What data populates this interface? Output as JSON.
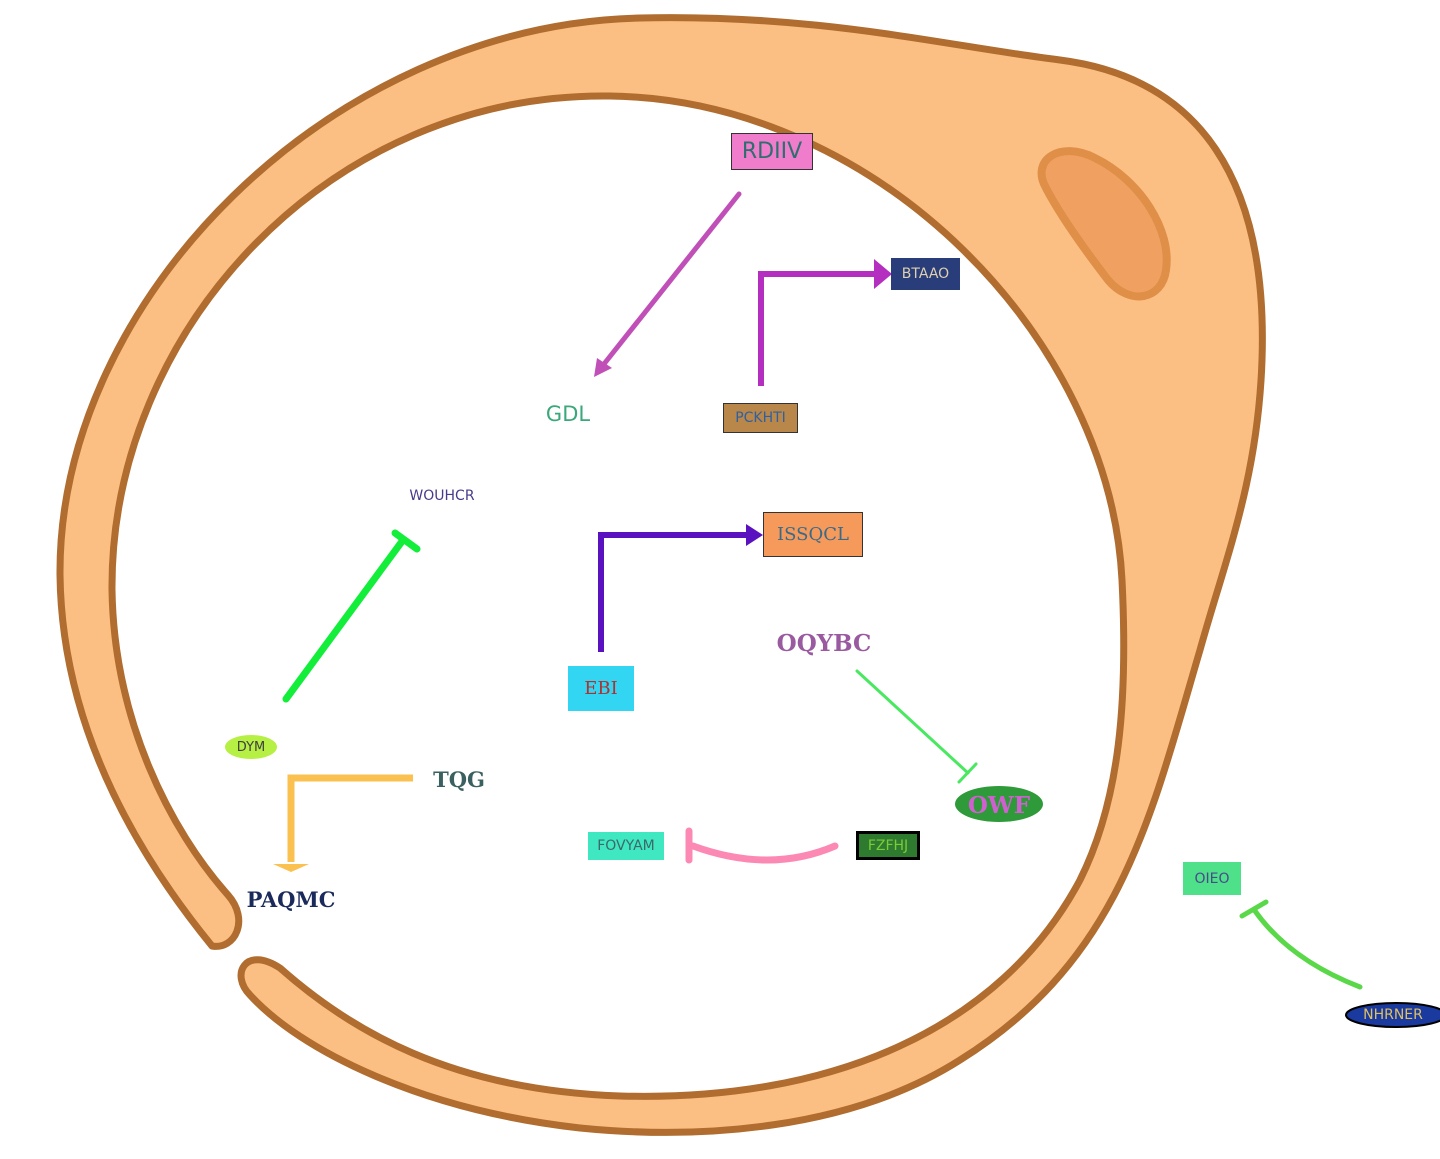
{
  "diagram": {
    "type": "pathway",
    "compartment": "cell",
    "colors": {
      "cell_fill": "#fbbf83",
      "cell_stroke": "#b06d2f",
      "organelle_fill": "#f0a060",
      "organelle_stroke": "#e08f48"
    },
    "nodes": {
      "rdiiv": {
        "label": "RDIIV",
        "fill": "#f07ccc",
        "text": "#2e6e6e",
        "border": "#333333"
      },
      "gdl": {
        "label": "GDL",
        "fill": "none",
        "text": "#3aa87a"
      },
      "btaao": {
        "label": "BTAAO",
        "fill": "#283d7a",
        "text": "#e0d0b0"
      },
      "pckhti": {
        "label": "PCKHTI",
        "fill": "#b9874a",
        "text": "#3060a0",
        "border": "#333333"
      },
      "wouhcr": {
        "label": "WOUHCR",
        "fill": "none",
        "text": "#4a3a8a"
      },
      "issqcl": {
        "label": "ISSQCL",
        "fill": "#f59a5a",
        "text": "#3a6a8a",
        "border": "#333333"
      },
      "ebi": {
        "label": "EBI",
        "fill": "#33d6f2",
        "text": "#b03030"
      },
      "oqybc": {
        "label": "OQYBC",
        "fill": "none",
        "text": "#9a5aa0"
      },
      "owf": {
        "label": "OWF",
        "fill": "#2e9a3a",
        "text": "#d060d0"
      },
      "dym": {
        "label": "DYM",
        "fill": "#b6f044",
        "text": "#404040"
      },
      "tqg": {
        "label": "TQG",
        "fill": "none",
        "text": "#3a6060"
      },
      "paqmc": {
        "label": "PAQMC",
        "fill": "none",
        "text": "#1a2a5a"
      },
      "fovyam": {
        "label": "FOVYAM",
        "fill": "#3fe8c0",
        "text": "#3a6a6a"
      },
      "fzfhj": {
        "label": "FZFHJ",
        "fill": "#2e7a2e",
        "text": "#7acc3a",
        "border": "#000000"
      },
      "oieo": {
        "label": "OIEO",
        "fill": "#4fe08a",
        "text": "#4a4a8a"
      },
      "nhrner": {
        "label": "NHRNER",
        "fill": "#1a3aa0",
        "text": "#e0c060",
        "border": "#000000"
      }
    },
    "edges": [
      {
        "from": "RDIIV",
        "to": "GDL",
        "kind": "activation",
        "color": "#c050b8"
      },
      {
        "from": "PCKHTI",
        "to": "BTAAO",
        "kind": "activation",
        "color": "#b42ec0"
      },
      {
        "from": "EBI",
        "to": "ISSQCL",
        "kind": "activation",
        "color": "#5a12c0"
      },
      {
        "from": "DYM",
        "to": "WOUHCR",
        "kind": "inhibition",
        "color": "#12ee3a"
      },
      {
        "from": "TQG",
        "to": "PAQMC",
        "kind": "activation",
        "color": "#fac050"
      },
      {
        "from": "OQYBC",
        "to": "OWF",
        "kind": "inhibition",
        "color": "#4ae860"
      },
      {
        "from": "FZFHJ",
        "to": "FOVYAM",
        "kind": "inhibition",
        "color": "#fc88b4"
      },
      {
        "from": "NHRNER",
        "to": "OIEO",
        "kind": "inhibition",
        "color": "#5ad84a"
      }
    ]
  }
}
